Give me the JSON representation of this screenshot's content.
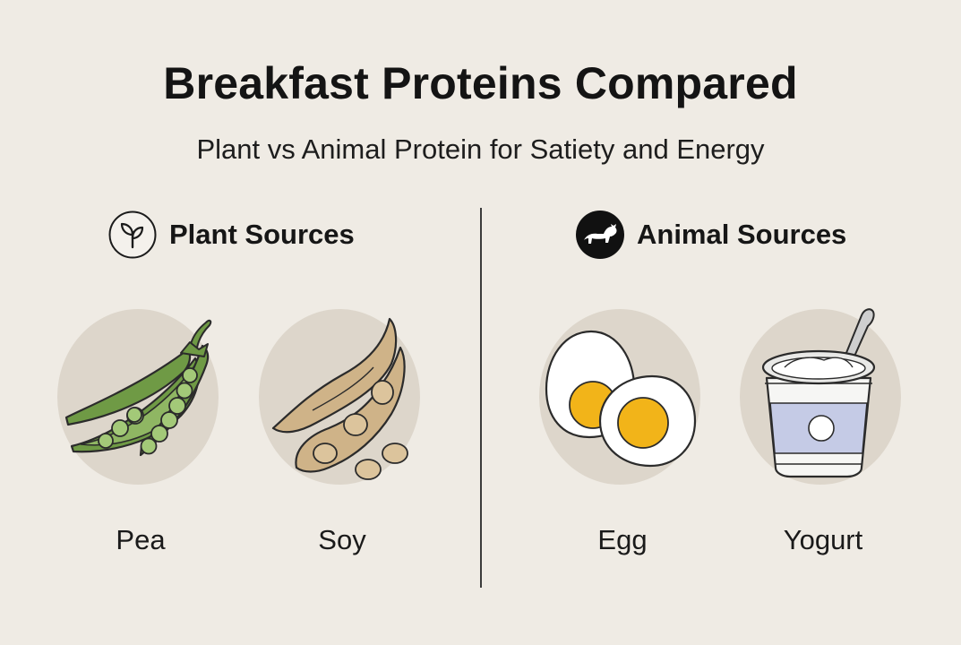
{
  "header": {
    "title": "Breakfast Proteins Compared",
    "subtitle": "Plant vs Animal Protein for Satiety and Energy"
  },
  "sections": [
    {
      "label": "Plant Sources",
      "icon": "sprout-icon",
      "items": [
        {
          "label": "Pea",
          "icon": "pea-pod-icon"
        },
        {
          "label": "Soy",
          "icon": "soybean-icon"
        }
      ]
    },
    {
      "label": "Animal Sources",
      "icon": "cow-icon",
      "items": [
        {
          "label": "Egg",
          "icon": "boiled-egg-icon"
        },
        {
          "label": "Yogurt",
          "icon": "yogurt-cup-icon"
        }
      ]
    }
  ],
  "colors": {
    "background": "#efebe4",
    "circle": "#ddd6cb",
    "pea_green": "#6f9a45",
    "soy_tan": "#cfb388",
    "egg_yolk": "#f2b419",
    "yogurt_blue": "#c5cbe6"
  }
}
